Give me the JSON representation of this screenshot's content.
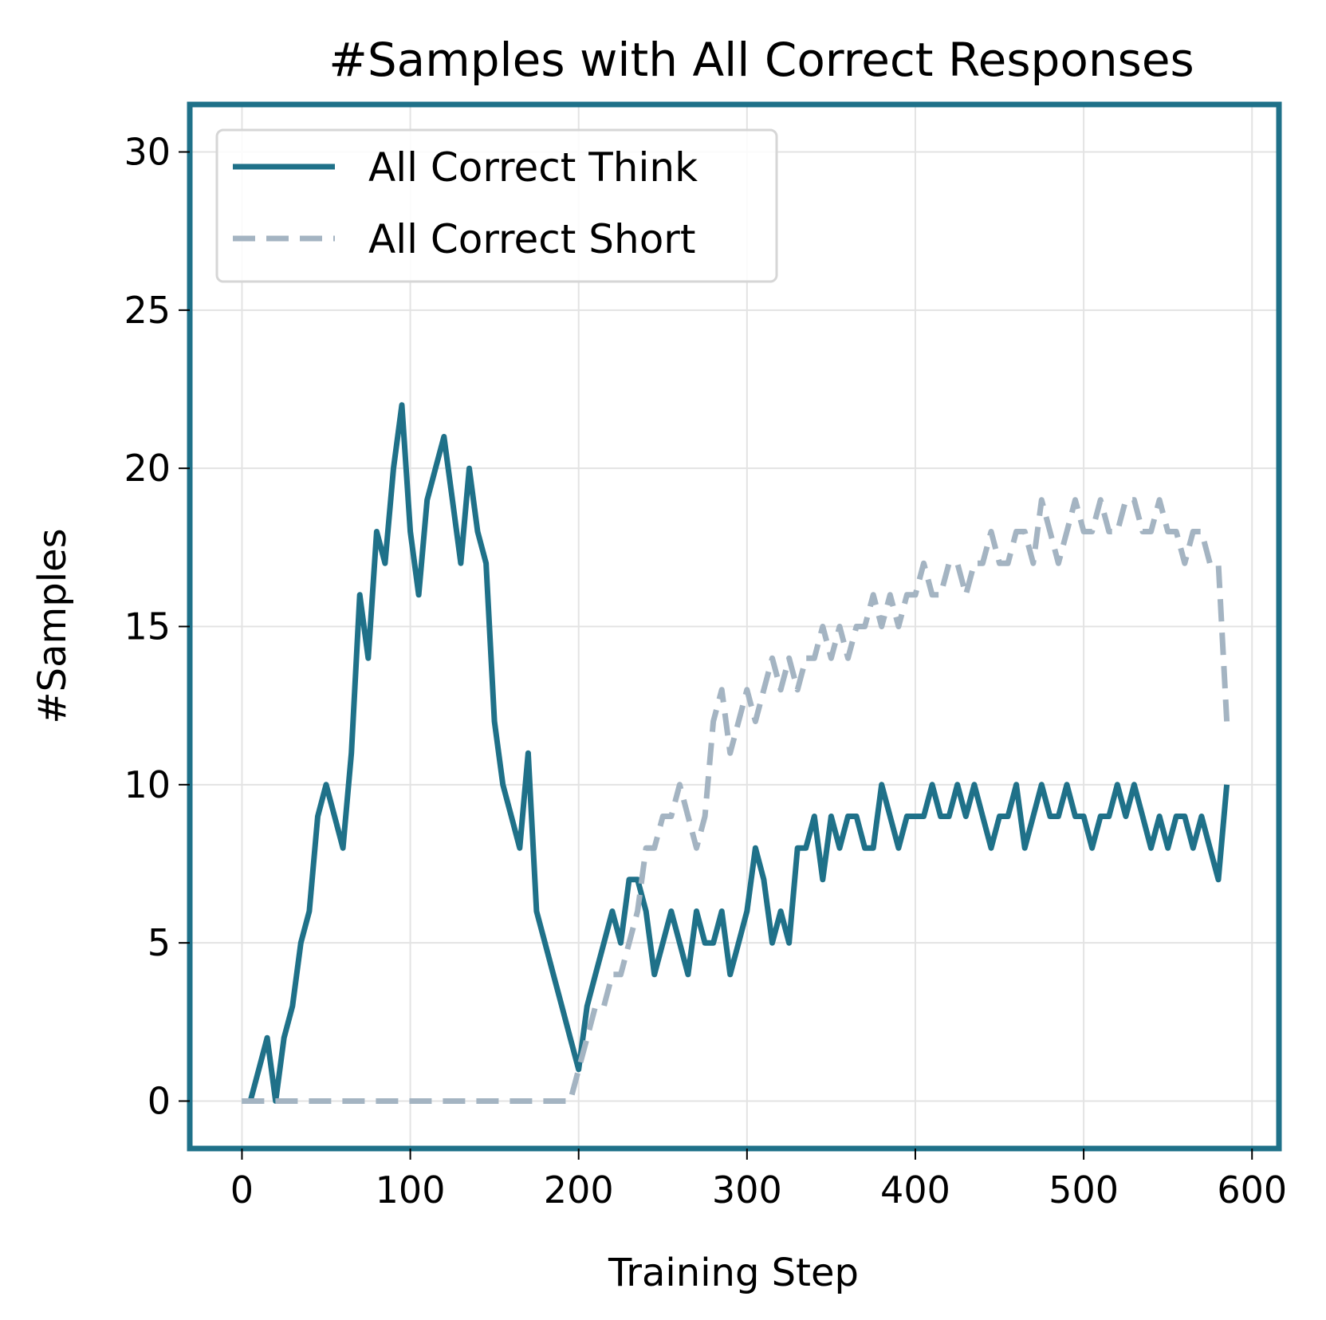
{
  "chart_data": {
    "type": "line",
    "title": "#Samples with All Correct Responses",
    "xlabel": "Training Step",
    "ylabel": "#Samples",
    "xlim": [
      -31,
      616
    ],
    "ylim": [
      -1.5,
      31.5
    ],
    "xticks": [
      0,
      100,
      200,
      300,
      400,
      500,
      600
    ],
    "yticks": [
      0,
      5,
      10,
      15,
      20,
      25,
      30
    ],
    "grid": true,
    "legend_position": "top-left",
    "frame_color": "#1f7189",
    "series": [
      {
        "name": "All Correct Think",
        "style": "solid",
        "color": "#1f7189",
        "x": [
          0,
          5,
          10,
          15,
          20,
          25,
          30,
          35,
          40,
          45,
          50,
          55,
          60,
          65,
          70,
          75,
          80,
          85,
          90,
          95,
          100,
          105,
          110,
          115,
          120,
          125,
          130,
          135,
          140,
          145,
          150,
          155,
          160,
          165,
          170,
          175,
          180,
          185,
          190,
          195,
          200,
          205,
          210,
          215,
          220,
          225,
          230,
          235,
          240,
          245,
          250,
          255,
          260,
          265,
          270,
          275,
          280,
          285,
          290,
          295,
          300,
          305,
          310,
          315,
          320,
          325,
          330,
          335,
          340,
          345,
          350,
          355,
          360,
          365,
          370,
          375,
          380,
          385,
          390,
          395,
          400,
          405,
          410,
          415,
          420,
          425,
          430,
          435,
          440,
          445,
          450,
          455,
          460,
          465,
          470,
          475,
          480,
          485,
          490,
          495,
          500,
          505,
          510,
          515,
          520,
          525,
          530,
          535,
          540,
          545,
          550,
          555,
          560,
          565,
          570,
          575,
          580,
          585
        ],
        "values": [
          0,
          0,
          1,
          2,
          0,
          2,
          3,
          5,
          6,
          9,
          10,
          9,
          8,
          11,
          16,
          14,
          18,
          17,
          20,
          22,
          18,
          16,
          19,
          20,
          21,
          19,
          17,
          20,
          18,
          17,
          12,
          10,
          9,
          8,
          11,
          6,
          5,
          4,
          3,
          2,
          1,
          3,
          4,
          5,
          6,
          5,
          7,
          7,
          6,
          4,
          5,
          6,
          5,
          4,
          6,
          5,
          5,
          6,
          4,
          5,
          6,
          8,
          7,
          5,
          6,
          5,
          8,
          8,
          9,
          7,
          9,
          8,
          9,
          9,
          8,
          8,
          10,
          9,
          8,
          9,
          9,
          9,
          10,
          9,
          9,
          10,
          9,
          10,
          9,
          8,
          9,
          9,
          10,
          8,
          9,
          10,
          9,
          9,
          10,
          9,
          9,
          8,
          9,
          9,
          10,
          9,
          10,
          9,
          8,
          9,
          8,
          9,
          9,
          8,
          9,
          8,
          7,
          10
        ]
      },
      {
        "name": "All Correct Short",
        "style": "dashed",
        "color": "#a4b4c2",
        "x": [
          0,
          5,
          10,
          15,
          20,
          25,
          30,
          35,
          40,
          45,
          50,
          55,
          60,
          65,
          70,
          75,
          80,
          85,
          90,
          95,
          100,
          105,
          110,
          115,
          120,
          125,
          130,
          135,
          140,
          145,
          150,
          155,
          160,
          165,
          170,
          175,
          180,
          185,
          190,
          195,
          200,
          205,
          210,
          215,
          220,
          225,
          230,
          235,
          240,
          245,
          250,
          255,
          260,
          265,
          270,
          275,
          280,
          285,
          290,
          295,
          300,
          305,
          310,
          315,
          320,
          325,
          330,
          335,
          340,
          345,
          350,
          355,
          360,
          365,
          370,
          375,
          380,
          385,
          390,
          395,
          400,
          405,
          410,
          415,
          420,
          425,
          430,
          435,
          440,
          445,
          450,
          455,
          460,
          465,
          470,
          475,
          480,
          485,
          490,
          495,
          500,
          505,
          510,
          515,
          520,
          525,
          530,
          535,
          540,
          545,
          550,
          555,
          560,
          565,
          570,
          575,
          580,
          585
        ],
        "values": [
          0,
          0,
          0,
          0,
          0,
          0,
          0,
          0,
          0,
          0,
          0,
          0,
          0,
          0,
          0,
          0,
          0,
          0,
          0,
          0,
          0,
          0,
          0,
          0,
          0,
          0,
          0,
          0,
          0,
          0,
          0,
          0,
          0,
          0,
          0,
          0,
          0,
          0,
          0,
          0,
          1,
          2,
          3,
          3,
          4,
          4,
          5,
          6,
          8,
          8,
          9,
          9,
          10,
          9,
          8,
          9,
          12,
          13,
          11,
          12,
          13,
          12,
          13,
          14,
          13,
          14,
          13,
          14,
          14,
          15,
          14,
          15,
          14,
          15,
          15,
          16,
          15,
          16,
          15,
          16,
          16,
          17,
          16,
          16,
          17,
          17,
          16,
          17,
          17,
          18,
          17,
          17,
          18,
          18,
          17,
          19,
          18,
          17,
          18,
          19,
          18,
          18,
          19,
          18,
          18,
          19,
          19,
          18,
          18,
          19,
          18,
          18,
          17,
          18,
          18,
          17,
          17,
          12
        ]
      }
    ]
  }
}
